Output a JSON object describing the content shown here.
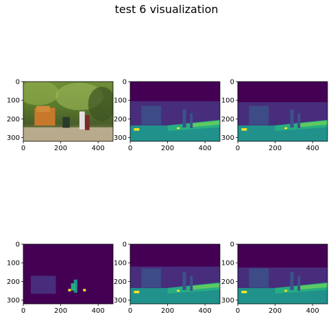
{
  "figure": {
    "title": "test 6 visualization"
  },
  "colors": {
    "viridis_dark": "#440154",
    "viridis_purple": "#472d7b",
    "viridis_blue": "#3b528b",
    "viridis_teal": "#21918c",
    "viridis_green": "#27ad81",
    "viridis_lightgreen": "#5ec962",
    "viridis_yellow": "#fde725"
  },
  "chart_data": [
    {
      "type": "heatmap",
      "panel": "input image (photo)",
      "image_size": [
        480,
        320
      ],
      "xlim": [
        0,
        480
      ],
      "ylim": [
        320,
        0
      ],
      "xticks": [
        "0",
        "200",
        "400"
      ],
      "yticks": [
        "0",
        "100",
        "200",
        "300"
      ]
    },
    {
      "type": "heatmap",
      "panel": "segmentation map",
      "image_size": [
        480,
        320
      ],
      "xlim": [
        0,
        480
      ],
      "ylim": [
        320,
        0
      ],
      "xticks": [
        "0",
        "200",
        "400"
      ],
      "yticks": [
        "0",
        "100",
        "200",
        "300"
      ],
      "colormap": "viridis"
    },
    {
      "type": "heatmap",
      "panel": "segmentation map",
      "image_size": [
        480,
        320
      ],
      "xlim": [
        0,
        480
      ],
      "ylim": [
        320,
        0
      ],
      "xticks": [
        "0",
        "200",
        "400"
      ],
      "yticks": [
        "0",
        "100",
        "200",
        "300"
      ],
      "colormap": "viridis"
    },
    {
      "type": "heatmap",
      "panel": "segmentation map",
      "image_size": [
        480,
        320
      ],
      "xlim": [
        0,
        480
      ],
      "ylim": [
        320,
        0
      ],
      "xticks": [
        "0",
        "200",
        "400"
      ],
      "yticks": [
        "0",
        "100",
        "200",
        "300"
      ],
      "colormap": "viridis"
    },
    {
      "type": "heatmap",
      "panel": "segmentation map",
      "image_size": [
        480,
        320
      ],
      "xlim": [
        0,
        480
      ],
      "ylim": [
        320,
        0
      ],
      "xticks": [
        "0",
        "200",
        "400"
      ],
      "yticks": [
        "0",
        "100",
        "200",
        "300"
      ],
      "colormap": "viridis"
    },
    {
      "type": "heatmap",
      "panel": "segmentation map",
      "image_size": [
        480,
        320
      ],
      "xlim": [
        0,
        480
      ],
      "ylim": [
        320,
        0
      ],
      "xticks": [
        "0",
        "200",
        "400"
      ],
      "yticks": [
        "0",
        "100",
        "200",
        "300"
      ],
      "colormap": "viridis"
    }
  ]
}
